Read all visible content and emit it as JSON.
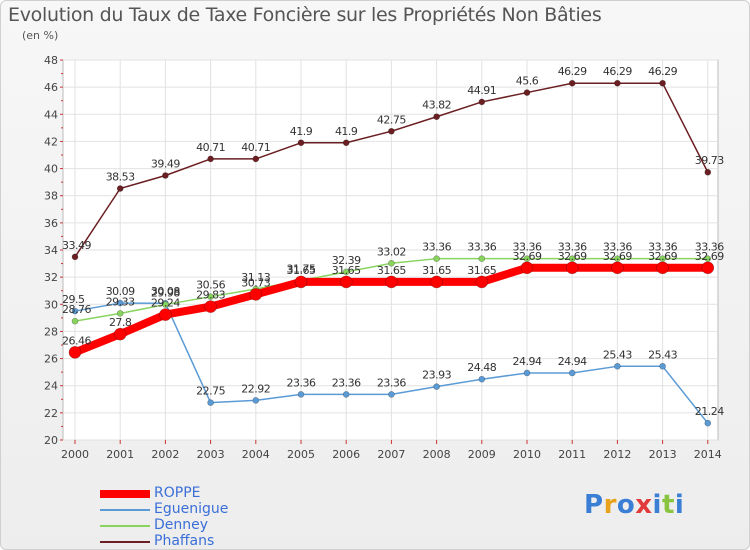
{
  "chart_data": {
    "type": "line",
    "title": "Evolution du Taux de Taxe Foncière sur les Propriétés Non Bâties",
    "subtitle": "(en %)",
    "x": [
      "2000",
      "2001",
      "2002",
      "2003",
      "2004",
      "2005",
      "2006",
      "2007",
      "2008",
      "2009",
      "2010",
      "2011",
      "2012",
      "2013",
      "2014"
    ],
    "ylim": [
      20,
      48
    ],
    "yticks": [
      "20",
      "22",
      "24",
      "26",
      "28",
      "30",
      "32",
      "34",
      "36",
      "38",
      "40",
      "42",
      "44",
      "46",
      "48"
    ],
    "grid": true,
    "series": [
      {
        "name": "Phaffans",
        "color": "#6b1f22",
        "values": [
          33.49,
          38.53,
          39.49,
          40.71,
          40.71,
          41.9,
          41.9,
          42.75,
          43.82,
          44.91,
          45.6,
          46.29,
          46.29,
          46.29,
          39.73
        ],
        "labels": [
          "33.49",
          "38.53",
          "39.49",
          "40.71",
          "40.71",
          "41.9",
          "41.9",
          "42.75",
          "43.82",
          "44.91",
          "45.6",
          "46.29",
          "46.29",
          "46.29",
          "39.73"
        ]
      },
      {
        "name": "Eguenigue",
        "color": "#5b9bd5",
        "values": [
          29.5,
          30.09,
          30.08,
          22.75,
          22.92,
          23.36,
          23.36,
          23.36,
          23.93,
          24.48,
          24.94,
          24.94,
          25.43,
          25.43,
          21.24
        ],
        "labels": [
          "29.5",
          "30.09",
          "30.08",
          "22.75",
          "22.92",
          "23.36",
          "23.36",
          "23.36",
          "23.93",
          "24.48",
          "24.94",
          "24.94",
          "25.43",
          "25.43",
          "21.24"
        ]
      },
      {
        "name": "Denney",
        "color": "#88d45e",
        "values": [
          28.76,
          29.33,
          29.98,
          30.56,
          31.13,
          31.75,
          32.39,
          33.02,
          33.36,
          33.36,
          33.36,
          33.36,
          33.36,
          33.36,
          33.36
        ],
        "labels": [
          "28.76",
          "29.33",
          "29.98",
          "30.56",
          "31.13",
          "31.75",
          "32.39",
          "33.02",
          "33.36",
          "33.36",
          "33.36",
          "33.36",
          "33.36",
          "33.36",
          "33.36"
        ]
      },
      {
        "name": "ROPPE",
        "color": "#ff0000",
        "values": [
          26.46,
          27.8,
          29.24,
          29.83,
          30.73,
          31.65,
          31.65,
          31.65,
          31.65,
          31.65,
          32.69,
          32.69,
          32.69,
          32.69,
          32.69
        ],
        "labels": [
          "26.46",
          "27.8",
          "29.24",
          "29.83",
          "30.73",
          "31.65",
          "31.65",
          "31.65",
          "31.65",
          "31.65",
          "32.69",
          "32.69",
          "32.69",
          "32.69",
          "32.69"
        ]
      }
    ],
    "legend": [
      "ROPPE",
      "Eguenigue",
      "Denney",
      "Phaffans"
    ]
  },
  "logo": {
    "text": "Proxiti",
    "colors": [
      "#3a7fd5",
      "#e8a21c",
      "#3a7fd5",
      "#e03a3a",
      "#3a7fd5",
      "#88c440",
      "#3a7fd5"
    ]
  }
}
